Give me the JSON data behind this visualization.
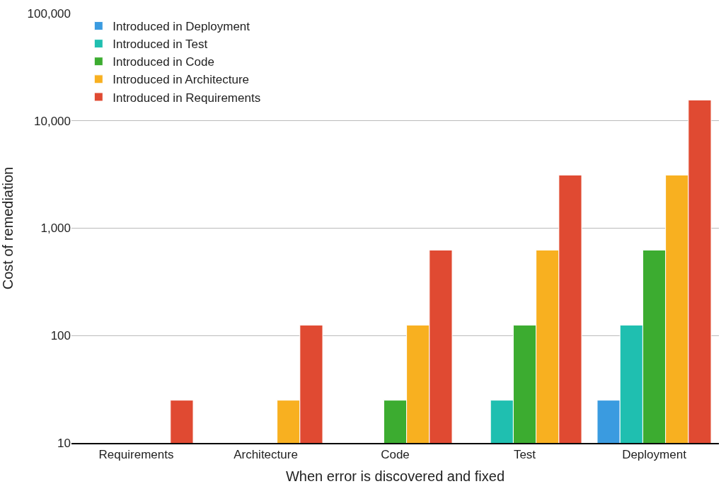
{
  "chart_data": {
    "type": "bar",
    "xlabel": "When error is discovered and fixed",
    "ylabel": "Cost of remediation",
    "categories": [
      "Requirements",
      "Architecture",
      "Code",
      "Test",
      "Deployment"
    ],
    "series": [
      {
        "name": "Introduced in Deployment",
        "color": "#3a9be0",
        "values": [
          null,
          null,
          null,
          null,
          25
        ]
      },
      {
        "name": "Introduced in Test",
        "color": "#1fbfb0",
        "values": [
          null,
          null,
          null,
          25,
          125
        ]
      },
      {
        "name": "Introduced in Code",
        "color": "#3cac30",
        "values": [
          null,
          null,
          25,
          125,
          625
        ]
      },
      {
        "name": "Introduced in Architecture",
        "color": "#f8b020",
        "values": [
          null,
          25,
          125,
          625,
          3125
        ]
      },
      {
        "name": "Introduced in Requirements",
        "color": "#e04a32",
        "values": [
          25,
          125,
          625,
          3125,
          15625
        ]
      }
    ],
    "log": "y",
    "ylim": [
      10,
      100000
    ],
    "yticks": [
      10,
      100,
      {
        "value": 1000,
        "label": "1,000"
      },
      {
        "value": 10000,
        "label": "10,000"
      },
      {
        "value": 100000,
        "label": "100,000"
      }
    ],
    "grid": "y",
    "legend": "top left"
  }
}
